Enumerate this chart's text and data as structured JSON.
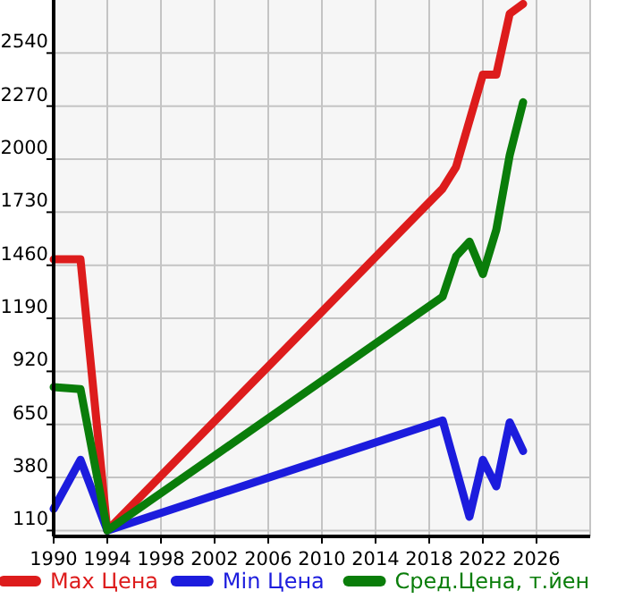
{
  "chart_data": {
    "type": "line",
    "x": [
      1990,
      1992,
      1994,
      2019,
      2020,
      2022,
      2023,
      2024,
      2025
    ],
    "series": [
      {
        "name": "Max Цена",
        "color": "#dd1c1c",
        "values": [
          1490,
          1490,
          110,
          1850,
          1960,
          2430,
          2430,
          2740,
          2790
        ]
      },
      {
        "name": "Min Цена",
        "color": "#1c1cdd",
        "x": [
          1990,
          1992,
          1994,
          2019,
          2021,
          2022,
          2023,
          2024,
          2025
        ],
        "values": [
          220,
          470,
          110,
          670,
          180,
          470,
          335,
          660,
          515
        ]
      },
      {
        "name": "Сред.Цена, т.йен",
        "color": "#0a7d0a",
        "x": [
          1990,
          1992,
          1994,
          2019,
          2020,
          2021,
          2022,
          2023,
          2024,
          2025
        ],
        "values": [
          840,
          830,
          110,
          1300,
          1505,
          1580,
          1415,
          1640,
          2020,
          2290
        ]
      }
    ],
    "xlim": [
      1990,
      2030
    ],
    "xticks": [
      1990,
      1994,
      1998,
      2002,
      2006,
      2010,
      2014,
      2018,
      2022,
      2026
    ],
    "ylim": [
      80,
      2810
    ],
    "yticks": [
      110,
      380,
      650,
      920,
      1190,
      1460,
      1730,
      2000,
      2270,
      2540
    ],
    "grid": true,
    "legend": "bottom",
    "marker": "none",
    "line_style": "solid"
  }
}
